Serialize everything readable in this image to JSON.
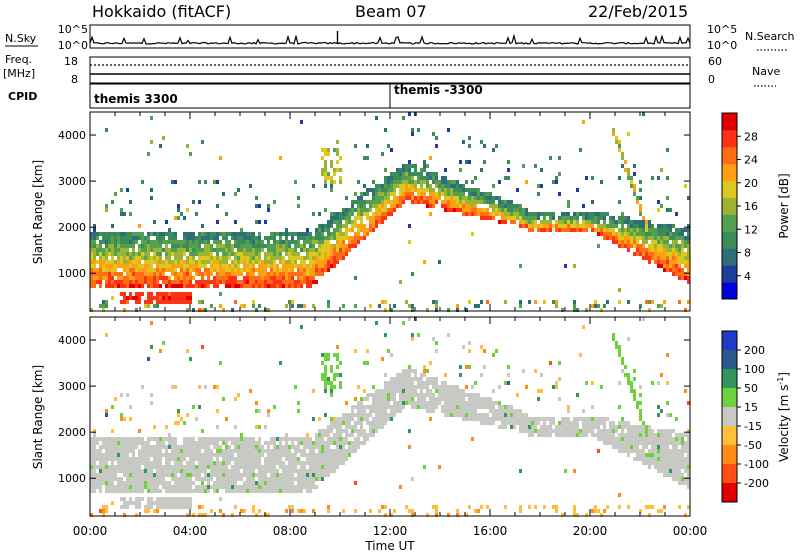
{
  "header": {
    "station": "Hokkaido (fitACF)",
    "beam": "Beam 07",
    "date": "22/Feb/2015"
  },
  "colors": {
    "frame": "#000000",
    "noise_trace": "#000000"
  },
  "top_panels": {
    "nsky_label": "N.Sky",
    "nsearch_label": "N.Search",
    "nsky_ticks": [
      "10^5",
      "10^0"
    ],
    "freq_label": "Freq.",
    "freq_unit": "[MHz]",
    "freq_ticks": [
      "18",
      "8"
    ],
    "nave_label": "Nave",
    "nave_ticks": [
      "60",
      "0"
    ],
    "cpid_label": "CPID",
    "cpid_segments": [
      {
        "start_hour": 0.0,
        "label": "themis 3300"
      },
      {
        "start_hour": 12.0,
        "label": "themis -3300"
      }
    ]
  },
  "chart_data": [
    {
      "type": "heatmap",
      "title": "Power",
      "xlabel": "Time UT",
      "ylabel": "Slant Range [km]",
      "x_range_hours": [
        0,
        24
      ],
      "x_ticks": [
        "00:00",
        "04:00",
        "08:00",
        "12:00",
        "16:00",
        "20:00",
        "00:00"
      ],
      "ylim": [
        180,
        4500
      ],
      "y_ticks": [
        1000,
        2000,
        3000,
        4000
      ],
      "colorbar": {
        "label": "Power [dB]",
        "range": [
          0,
          32
        ],
        "ticks": [
          "4",
          "8",
          "12",
          "16",
          "20",
          "24",
          "28"
        ],
        "stops": [
          "#0000dd",
          "#1e3c9b",
          "#2d6e78",
          "#3c8c5a",
          "#55a050",
          "#9bb432",
          "#dcc81e",
          "#ffa014",
          "#ff6e14",
          "#ff3214",
          "#e10000"
        ]
      },
      "echo_bands": [
        {
          "name": "near-range scatter",
          "start_hour": 0.0,
          "end_hour": 8.8,
          "range_km": [
            750,
            1800
          ],
          "level": 27
        },
        {
          "name": "near-range scatter",
          "start_hour": 8.8,
          "end_hour": 12.6,
          "range_km": [
            1700,
            3300
          ],
          "level": 20
        },
        {
          "name": "main band",
          "start_hour": 12.6,
          "end_hour": 17.5,
          "range_km": [
            2000,
            2900
          ],
          "level": 20
        },
        {
          "name": "main band",
          "start_hour": 17.5,
          "end_hour": 20.0,
          "range_km": [
            1900,
            2200
          ],
          "level": 22
        },
        {
          "name": "main band",
          "start_hour": 20.0,
          "end_hour": 24.0,
          "range_km": [
            800,
            1900
          ],
          "level": 25
        },
        {
          "name": "near-range patch",
          "start_hour": 1.2,
          "end_hour": 4.0,
          "range_km": [
            350,
            650
          ],
          "level": 27
        }
      ]
    },
    {
      "type": "heatmap",
      "title": "Velocity",
      "xlabel": "Time UT",
      "ylabel": "Slant Range [km]",
      "x_range_hours": [
        0,
        24
      ],
      "x_ticks": [
        "00:00",
        "04:00",
        "08:00",
        "12:00",
        "16:00",
        "20:00",
        "00:00"
      ],
      "ylim": [
        180,
        4500
      ],
      "y_ticks": [
        1000,
        2000,
        3000,
        4000
      ],
      "colorbar": {
        "label": "Velocity [m s-1]",
        "label_main": "Velocity [m s",
        "label_sup": "-1",
        "label_end": "]",
        "ticks": [
          "200",
          "100",
          "50",
          "15",
          "-15",
          "-50",
          "-100",
          "-200"
        ],
        "bins": [
          {
            "range": "> 200",
            "color": "#1e3cc8"
          },
          {
            "range": "100 to 200",
            "color": "#285a8c"
          },
          {
            "range": "50 to 100",
            "color": "#32965a"
          },
          {
            "range": "15 to 50",
            "color": "#6ed23c"
          },
          {
            "range": "-15 to 15",
            "color": "#c8c8c4"
          },
          {
            "range": "-50 to -15",
            "color": "#ffbe3c"
          },
          {
            "range": "-100 to -50",
            "color": "#ff8c14"
          },
          {
            "range": "-200 to -100",
            "color": "#ff5014"
          },
          {
            "range": "< -200",
            "color": "#e10000"
          }
        ]
      },
      "ground_scatter_color": "#c8c8c4"
    }
  ]
}
